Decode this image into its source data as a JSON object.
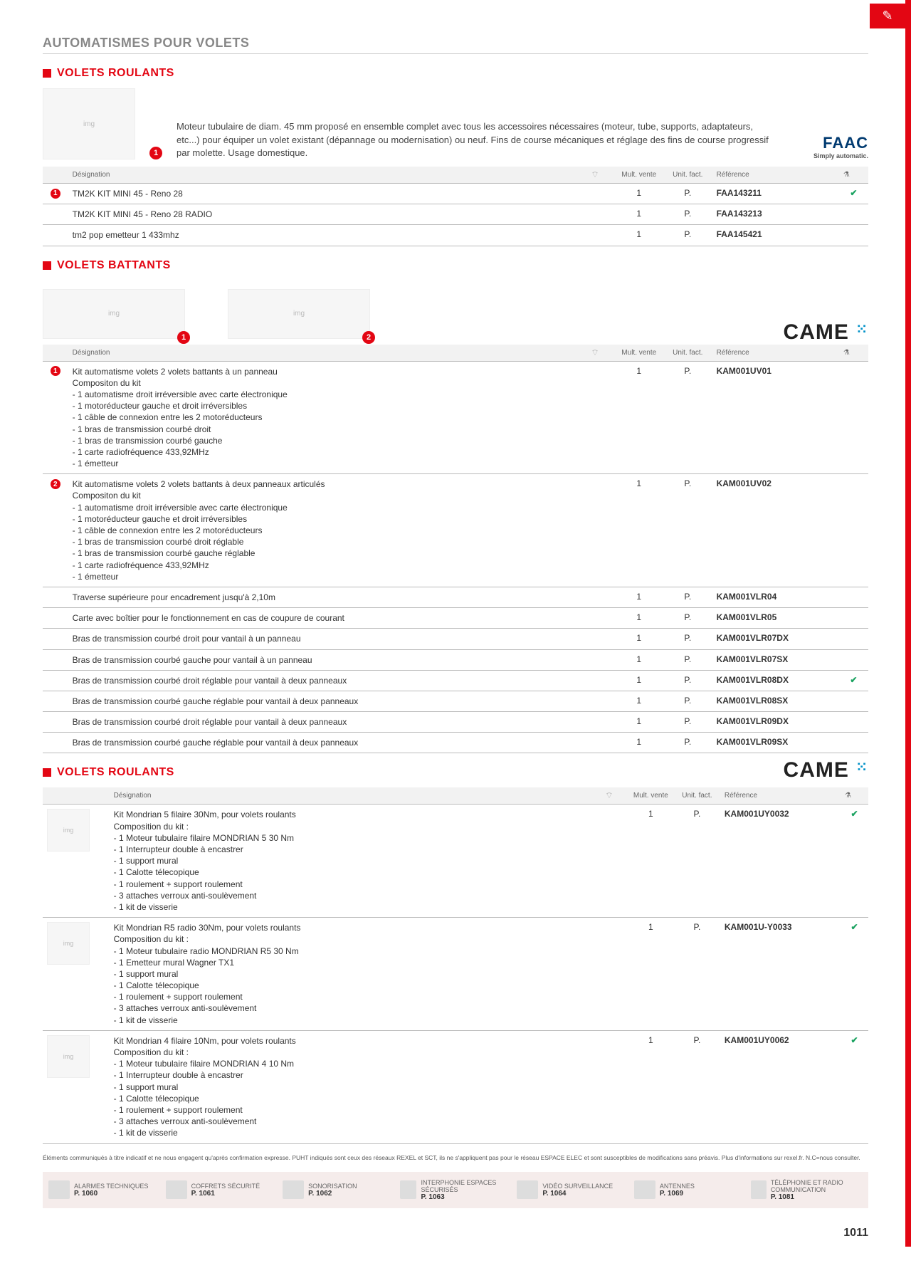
{
  "page_number": "1011",
  "main_title": "AUTOMATISMES POUR VOLETS",
  "section1": {
    "title": "VOLETS ROULANTS",
    "intro": "Moteur tubulaire de diam. 45 mm proposé en ensemble complet avec tous les accessoires nécessaires (moteur, tube, supports, adaptateurs, etc...) pour équiper un volet existant (dépannage ou modernisation) ou neuf. Fins de course mécaniques et réglage des fins de course progressif par molette. Usage domestique.",
    "brand": "FAAC",
    "brand_sub": "Simply automatic.",
    "badge": "1",
    "headers": {
      "designation": "Désignation",
      "mult": "Mult. vente",
      "unit": "Unit. fact.",
      "ref": "Référence"
    },
    "rows": [
      {
        "badge": "1",
        "designation": "TM2K KIT MINI 45 - Reno 28",
        "mult": "1",
        "unit": "P.",
        "ref": "FAA143211",
        "check": "✔"
      },
      {
        "badge": "",
        "designation": "TM2K KIT MINI 45 - Reno 28 RADIO",
        "mult": "1",
        "unit": "P.",
        "ref": "FAA143213",
        "check": ""
      },
      {
        "badge": "",
        "designation": "tm2 pop emetteur 1 433mhz",
        "mult": "1",
        "unit": "P.",
        "ref": "FAA145421",
        "check": ""
      }
    ]
  },
  "section2": {
    "title": "VOLETS BATTANTS",
    "brand": "CAME",
    "img_badges": [
      "1",
      "2"
    ],
    "headers": {
      "designation": "Désignation",
      "mult": "Mult. vente",
      "unit": "Unit. fact.",
      "ref": "Référence"
    },
    "rows": [
      {
        "badge": "1",
        "designation": "Kit automatisme volets 2 volets battants à un panneau\nCompositon du kit\n- 1 automatisme droit irréversible avec carte électronique\n- 1 motoréducteur gauche et droit irréversibles\n- 1 câble de connexion entre les 2 motoréducteurs\n- 1 bras de transmission courbé droit\n- 1 bras de transmission courbé gauche\n- 1 carte radiofréquence 433,92MHz\n- 1 émetteur",
        "mult": "1",
        "unit": "P.",
        "ref": "KAM001UV01",
        "check": ""
      },
      {
        "badge": "2",
        "designation": "Kit automatisme volets 2 volets battants à deux panneaux articulés\nCompositon du kit\n- 1 automatisme droit irréversible avec carte électronique\n- 1 motoréducteur gauche et droit irréversibles\n- 1 câble de connexion entre les 2 motoréducteurs\n- 1 bras de transmission courbé droit réglable\n- 1 bras de transmission courbé gauche réglable\n- 1 carte radiofréquence 433,92MHz\n- 1 émetteur",
        "mult": "1",
        "unit": "P.",
        "ref": "KAM001UV02",
        "check": ""
      },
      {
        "badge": "",
        "designation": "Traverse supérieure pour encadrement jusqu'à 2,10m",
        "mult": "1",
        "unit": "P.",
        "ref": "KAM001VLR04",
        "check": ""
      },
      {
        "badge": "",
        "designation": "Carte avec boîtier pour le fonctionnement en cas de coupure de courant",
        "mult": "1",
        "unit": "P.",
        "ref": "KAM001VLR05",
        "check": ""
      },
      {
        "badge": "",
        "designation": "Bras de transmission courbé droit pour vantail à un panneau",
        "mult": "1",
        "unit": "P.",
        "ref": "KAM001VLR07DX",
        "check": ""
      },
      {
        "badge": "",
        "designation": "Bras de transmission courbé gauche pour vantail à un panneau",
        "mult": "1",
        "unit": "P.",
        "ref": "KAM001VLR07SX",
        "check": ""
      },
      {
        "badge": "",
        "designation": "Bras de transmission courbé droit réglable pour vantail à deux panneaux",
        "mult": "1",
        "unit": "P.",
        "ref": "KAM001VLR08DX",
        "check": "✔"
      },
      {
        "badge": "",
        "designation": "Bras de transmission courbé gauche réglable pour vantail à deux panneaux",
        "mult": "1",
        "unit": "P.",
        "ref": "KAM001VLR08SX",
        "check": ""
      },
      {
        "badge": "",
        "designation": "Bras de transmission courbé droit réglable pour vantail à deux panneaux",
        "mult": "1",
        "unit": "P.",
        "ref": "KAM001VLR09DX",
        "check": ""
      },
      {
        "badge": "",
        "designation": "Bras de transmission courbé gauche réglable pour vantail à deux panneaux",
        "mult": "1",
        "unit": "P.",
        "ref": "KAM001VLR09SX",
        "check": ""
      }
    ]
  },
  "section3": {
    "title": "VOLETS ROULANTS",
    "brand": "CAME",
    "headers": {
      "designation": "Désignation",
      "mult": "Mult. vente",
      "unit": "Unit. fact.",
      "ref": "Référence"
    },
    "rows": [
      {
        "designation": "Kit Mondrian 5 filaire 30Nm, pour volets roulants\nComposition du kit :\n- 1 Moteur tubulaire filaire MONDRIAN 5 30 Nm\n- 1 Interrupteur double à encastrer\n- 1 support mural\n- 1 Calotte télecopique\n- 1 roulement + support roulement\n- 3 attaches verroux anti-soulèvement\n- 1 kit de visserie",
        "mult": "1",
        "unit": "P.",
        "ref": "KAM001UY0032",
        "check": "✔"
      },
      {
        "designation": "Kit Mondrian R5 radio 30Nm, pour volets roulants\nComposition du kit :\n- 1 Moteur tubulaire radio MONDRIAN R5 30 Nm\n- 1 Emetteur mural Wagner TX1\n- 1 support mural\n- 1 Calotte télecopique\n- 1 roulement + support roulement\n- 3 attaches verroux anti-soulèvement\n- 1 kit de visserie",
        "mult": "1",
        "unit": "P.",
        "ref": "KAM001U-Y0033",
        "check": "✔"
      },
      {
        "designation": "Kit Mondrian 4 filaire 10Nm, pour volets roulants\nComposition du kit :\n- 1 Moteur tubulaire filaire MONDRIAN 4 10 Nm\n- 1 Interrupteur double à encastrer\n- 1 support mural\n- 1 Calotte télecopique\n- 1 roulement + support roulement\n- 3 attaches verroux anti-soulèvement\n- 1 kit de visserie",
        "mult": "1",
        "unit": "P.",
        "ref": "KAM001UY0062",
        "check": "✔"
      }
    ]
  },
  "footnote": "Éléments communiqués à titre indicatif et ne nous engagent qu'après confirmation expresse. PUHT indiqués sont ceux des réseaux REXEL et SCT, ils ne s'appliquent pas pour le réseau ESPACE ELEC et sont susceptibles de modifications sans préavis. Plus d'informations sur rexel.fr. N.C=nous consulter.",
  "footer_nav": [
    {
      "label": "ALARMES TECHNIQUES",
      "page": "P. 1060"
    },
    {
      "label": "COFFRETS SÉCURITÉ",
      "page": "P. 1061"
    },
    {
      "label": "SONORISATION",
      "page": "P. 1062"
    },
    {
      "label": "INTERPHONIE ESPACES SÉCURISÉS",
      "page": "P. 1063"
    },
    {
      "label": "VIDÉO SURVEILLANCE",
      "page": "P. 1064"
    },
    {
      "label": "ANTENNES",
      "page": "P. 1069"
    },
    {
      "label": "TÉLÉPHONIE ET RADIO COMMUNICATION",
      "page": "P. 1081"
    }
  ]
}
